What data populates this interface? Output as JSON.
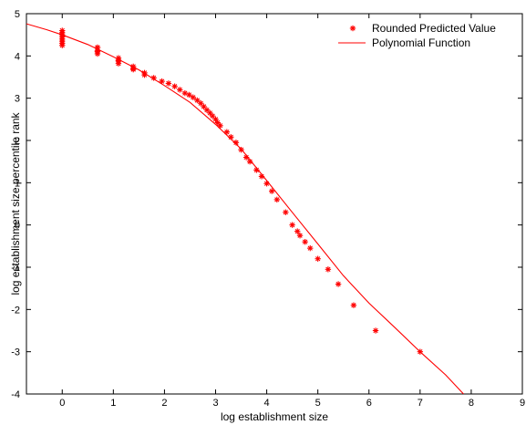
{
  "chart_data": {
    "type": "scatter",
    "xlabel": "log establishment size",
    "ylabel": "log establishment size percentile rank",
    "xlim": [
      -0.7,
      9
    ],
    "ylim": [
      -4,
      5
    ],
    "xticks": [
      0,
      1,
      2,
      3,
      4,
      5,
      6,
      7,
      8,
      9
    ],
    "yticks": [
      -4,
      -3,
      -2,
      -1,
      0,
      1,
      2,
      3,
      4,
      5
    ],
    "grid": false,
    "legend_position": "top-right",
    "colors": {
      "series": "#ff0000",
      "axes": "#000000"
    },
    "series": [
      {
        "name": "Rounded Predicted Value",
        "kind": "markers",
        "marker": "asterisk",
        "x": [
          0,
          0,
          0,
          0,
          0,
          0,
          0,
          0,
          0.69,
          0.69,
          0.69,
          0.69,
          0.69,
          1.1,
          1.1,
          1.1,
          1.1,
          1.39,
          1.39,
          1.39,
          1.61,
          1.61,
          1.79,
          1.95,
          2.08,
          2.2,
          2.3,
          2.4,
          2.48,
          2.56,
          2.64,
          2.71,
          2.77,
          2.83,
          2.89,
          2.94,
          3.0,
          3.04,
          3.09,
          3.22,
          3.3,
          3.4,
          3.5,
          3.6,
          3.67,
          3.8,
          3.9,
          4.0,
          4.1,
          4.2,
          4.37,
          4.5,
          4.6,
          4.65,
          4.75,
          4.85,
          5.0,
          5.2,
          5.4,
          5.7,
          6.13,
          7.0
        ],
        "y": [
          4.55,
          4.5,
          4.45,
          4.4,
          4.35,
          4.3,
          4.25,
          4.6,
          4.2,
          4.12,
          4.05,
          4.2,
          4.1,
          3.95,
          3.88,
          3.82,
          3.9,
          3.75,
          3.68,
          3.7,
          3.6,
          3.55,
          3.48,
          3.4,
          3.35,
          3.28,
          3.2,
          3.12,
          3.08,
          3.02,
          2.95,
          2.88,
          2.8,
          2.72,
          2.65,
          2.58,
          2.5,
          2.42,
          2.35,
          2.2,
          2.08,
          1.95,
          1.78,
          1.6,
          1.5,
          1.3,
          1.15,
          0.98,
          0.8,
          0.6,
          0.3,
          0.0,
          -0.15,
          -0.25,
          -0.4,
          -0.55,
          -0.8,
          -1.05,
          -1.4,
          -1.9,
          -2.5,
          -3.0
        ]
      },
      {
        "name": "Polynomial Function",
        "kind": "line",
        "x": [
          -0.7,
          -0.3,
          0,
          0.5,
          1,
          1.5,
          2,
          2.5,
          3,
          3.5,
          4,
          4.5,
          5,
          5.5,
          6,
          6.5,
          7,
          7.5,
          7.85
        ],
        "y": [
          4.76,
          4.62,
          4.5,
          4.27,
          3.98,
          3.67,
          3.3,
          2.9,
          2.38,
          1.8,
          1.05,
          0.3,
          -0.45,
          -1.2,
          -1.85,
          -2.42,
          -3.0,
          -3.55,
          -4.0
        ]
      }
    ]
  }
}
